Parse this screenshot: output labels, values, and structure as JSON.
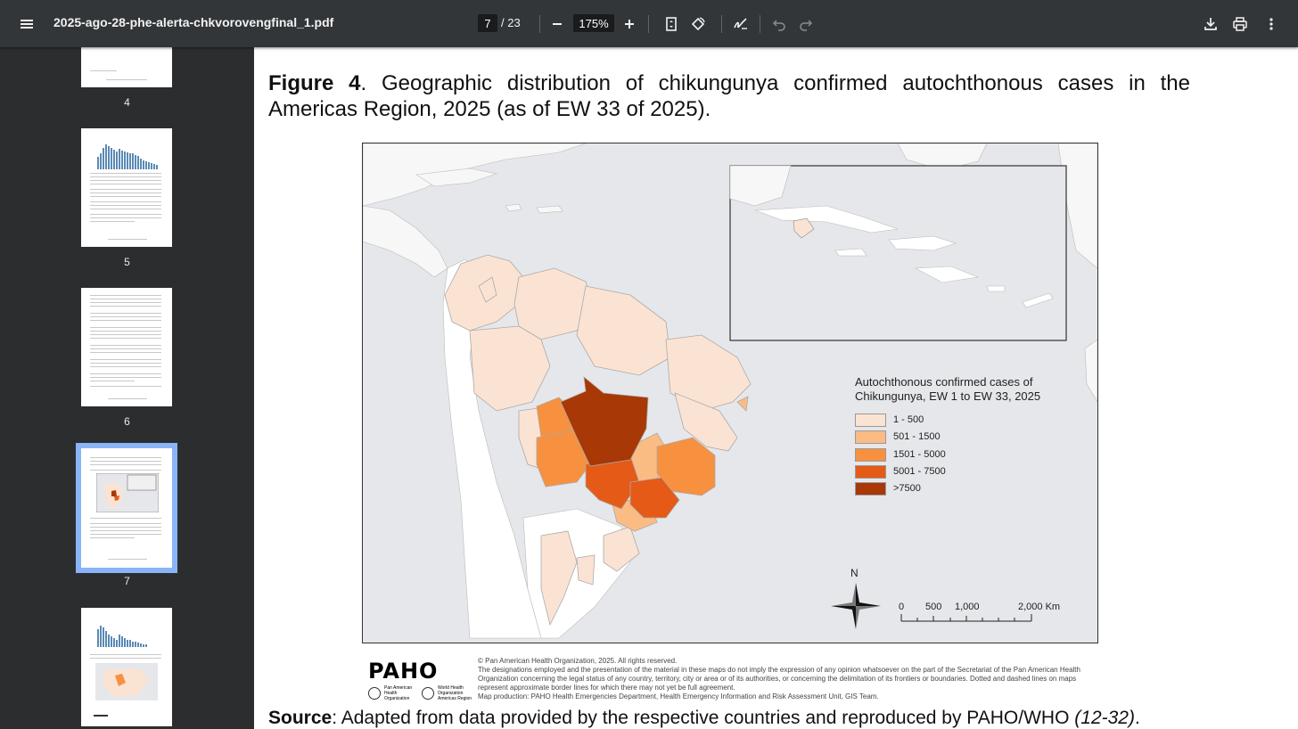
{
  "toolbar": {
    "title": "2025-ago-28-phe-alerta-chkvorovengfinal_1.pdf",
    "current_page": "7",
    "total_pages": "/ 23",
    "zoom": "175%",
    "icons": [
      "menu-icon",
      "zoom-out-icon",
      "zoom-in-icon",
      "fit-page-icon",
      "rotate-icon",
      "annotate-icon",
      "undo-icon",
      "redo-icon",
      "download-icon",
      "print-icon",
      "more-icon"
    ]
  },
  "thumbnails": [
    {
      "number": "4"
    },
    {
      "number": "5"
    },
    {
      "number": "6"
    },
    {
      "number": "7",
      "selected": true
    },
    {
      "number": ""
    }
  ],
  "page": {
    "figure_label": "Figure 4",
    "figure_caption_line1": ". Geographic distribution of chikungunya confirmed autochthonous cases in the",
    "figure_caption_line2": "Americas Region, 2025 (as of EW 33 of 2025).",
    "legend": {
      "title_line1": "Autochthonous confirmed cases of",
      "title_line2": "Chikungunya, EW 1 to EW 33, 2025",
      "items": [
        {
          "label": "1 - 500",
          "color": "#fbe3d3"
        },
        {
          "label": "501 - 1500",
          "color": "#fbbc84"
        },
        {
          "label": "1501 - 5000",
          "color": "#f7913f"
        },
        {
          "label": "5001 - 7500",
          "color": "#e55a16"
        },
        {
          "label": ">7500",
          "color": "#a83806"
        }
      ]
    },
    "north_label": "N",
    "scale": {
      "l0": "0",
      "l1": "500",
      "l2": "1,000",
      "l3": "2,000 Km"
    },
    "logo": {
      "text": "PAHO",
      "sub1": "Pan American Health Organization",
      "sub2": "World Health Organization Americas Region"
    },
    "disclaimer": {
      "line1": "© Pan American Health Organization, 2025. All rights reserved.",
      "line2": "The designations employed and the presentation of the material in these maps do not imply the expression of any opinion whatsoever on the part of the Secretariat of the Pan American Health Organization concerning the legal status of any country, territory, city or area or of its authorities, or concerning the delimitation of its frontiers or boundaries. Dotted and dashed lines on maps represent approximate border lines for which there may not yet be full agreement.",
      "line3": "Map production: PAHO Health Emergencies Department, Health Emergency Information and Risk Assessment Unit, GIS Team."
    },
    "source": {
      "label": "Source",
      "text": ": Adapted from data provided by the respective countries and reproduced by PAHO/WHO ",
      "ref": "(12-32)",
      "end": "."
    }
  }
}
